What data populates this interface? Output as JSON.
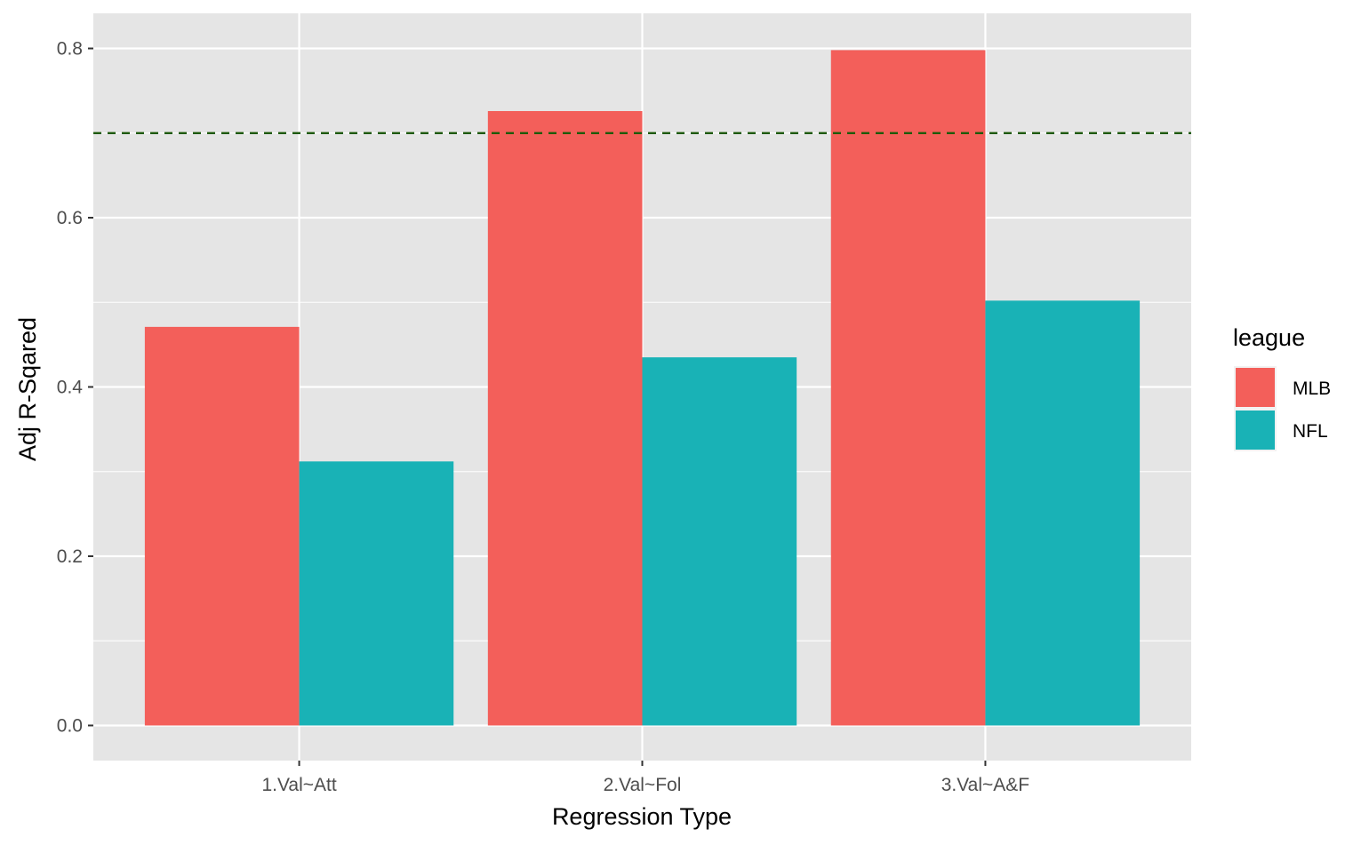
{
  "chart_data": {
    "type": "bar",
    "title": "",
    "xlabel": "Regression Type",
    "ylabel": "Adj R-Sqared",
    "categories": [
      "1.Val~Att",
      "2.Val~Fol",
      "3.Val~A&F"
    ],
    "series": [
      {
        "name": "MLB",
        "color": "#F35F5A",
        "values": [
          0.471,
          0.726,
          0.798
        ]
      },
      {
        "name": "NFL",
        "color": "#19B2B6",
        "values": [
          0.312,
          0.435,
          0.502
        ]
      }
    ],
    "ylim": [
      -0.0415,
      0.8415
    ],
    "yticks": [
      0.0,
      0.2,
      0.4,
      0.6,
      0.8
    ],
    "ytick_labels": [
      "0.0",
      "0.2",
      "0.4",
      "0.6",
      "0.8"
    ],
    "reference_line": {
      "y": 0.7,
      "style": "dashed",
      "color": "#1E5A0A"
    },
    "grid": true,
    "panel_background": "#E5E5E5",
    "legend": {
      "title": "league",
      "position": "right"
    }
  }
}
